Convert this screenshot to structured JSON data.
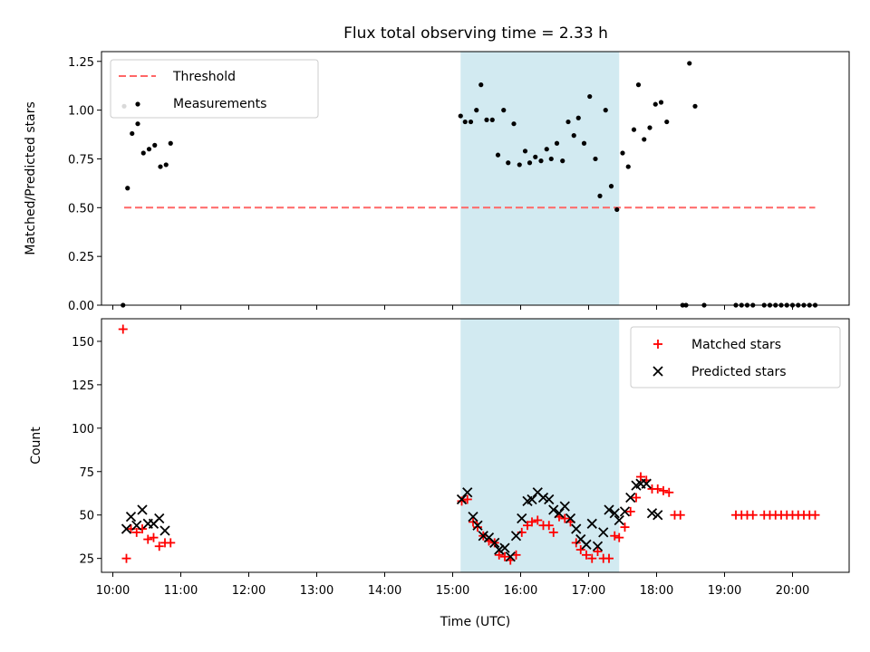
{
  "colors": {
    "shade": "#add8e6",
    "threshold": "#ff6666",
    "measurement": "#000000",
    "matched": "#ff0000",
    "predicted": "#000000"
  },
  "chart_data": [
    {
      "type": "scatter",
      "title": "Flux total observing time = 2.33 h",
      "xlabel": "",
      "ylabel": "Matched/Predicted stars",
      "ylim": [
        0.0,
        1.3
      ],
      "yticks": [
        "0.00",
        "0.25",
        "0.50",
        "0.75",
        "1.00",
        "1.25"
      ],
      "xlim": [
        "09:50",
        "20:50"
      ],
      "shaded_interval": [
        "15:07",
        "17:27"
      ],
      "legend": {
        "position": "upper left",
        "entries": [
          "Threshold",
          "Measurements"
        ]
      },
      "threshold": {
        "name": "Threshold",
        "y": 0.5,
        "x_start": "10:10",
        "x_end": "20:20",
        "style": "dashed"
      },
      "series": [
        {
          "name": "Measurements",
          "points": [
            [
              "10:09",
              0.0
            ],
            [
              "10:10",
              1.02
            ],
            [
              "10:13",
              0.6
            ],
            [
              "10:17",
              0.88
            ],
            [
              "10:22",
              0.93
            ],
            [
              "10:27",
              0.78
            ],
            [
              "10:32",
              0.8
            ],
            [
              "10:37",
              0.82
            ],
            [
              "10:42",
              0.71
            ],
            [
              "10:47",
              0.72
            ],
            [
              "10:51",
              0.83
            ],
            [
              "15:07",
              0.97
            ],
            [
              "15:11",
              0.94
            ],
            [
              "15:16",
              0.94
            ],
            [
              "15:21",
              1.0
            ],
            [
              "15:25",
              1.13
            ],
            [
              "15:30",
              0.95
            ],
            [
              "15:35",
              0.95
            ],
            [
              "15:40",
              0.77
            ],
            [
              "15:45",
              1.0
            ],
            [
              "15:49",
              0.73
            ],
            [
              "15:54",
              0.93
            ],
            [
              "15:59",
              0.72
            ],
            [
              "16:04",
              0.79
            ],
            [
              "16:08",
              0.73
            ],
            [
              "16:13",
              0.76
            ],
            [
              "16:18",
              0.74
            ],
            [
              "16:23",
              0.8
            ],
            [
              "16:27",
              0.75
            ],
            [
              "16:32",
              0.83
            ],
            [
              "16:37",
              0.74
            ],
            [
              "16:42",
              0.94
            ],
            [
              "16:47",
              0.87
            ],
            [
              "16:51",
              0.96
            ],
            [
              "16:56",
              0.83
            ],
            [
              "17:01",
              1.07
            ],
            [
              "17:06",
              0.75
            ],
            [
              "17:10",
              0.56
            ],
            [
              "17:15",
              1.0
            ],
            [
              "17:20",
              0.61
            ],
            [
              "17:25",
              0.49
            ],
            [
              "17:30",
              0.78
            ],
            [
              "17:35",
              0.71
            ],
            [
              "17:40",
              0.9
            ],
            [
              "17:44",
              1.13
            ],
            [
              "17:49",
              0.85
            ],
            [
              "17:54",
              0.91
            ],
            [
              "17:59",
              1.03
            ],
            [
              "18:04",
              1.04
            ],
            [
              "18:09",
              0.94
            ],
            [
              "18:23",
              0.0
            ],
            [
              "18:26",
              0.0
            ],
            [
              "18:29",
              1.24
            ],
            [
              "18:34",
              1.02
            ],
            [
              "18:42",
              0.0
            ],
            [
              "19:10",
              0.0
            ],
            [
              "19:15",
              0.0
            ],
            [
              "19:20",
              0.0
            ],
            [
              "19:25",
              0.0
            ],
            [
              "19:35",
              0.0
            ],
            [
              "19:40",
              0.0
            ],
            [
              "19:45",
              0.0
            ],
            [
              "19:50",
              0.0
            ],
            [
              "19:55",
              0.0
            ],
            [
              "20:00",
              0.0
            ],
            [
              "20:05",
              0.0
            ],
            [
              "20:10",
              0.0
            ],
            [
              "20:15",
              0.0
            ],
            [
              "20:20",
              0.0
            ]
          ]
        }
      ]
    },
    {
      "type": "scatter",
      "title": "",
      "xlabel": "Time (UTC)",
      "ylabel": "Count",
      "ylim": [
        17,
        163
      ],
      "yticks": [
        "25",
        "50",
        "75",
        "100",
        "125",
        "150"
      ],
      "xticks": [
        "10:00",
        "11:00",
        "12:00",
        "13:00",
        "14:00",
        "15:00",
        "16:00",
        "17:00",
        "18:00",
        "19:00",
        "20:00"
      ],
      "xlim": [
        "09:50",
        "20:50"
      ],
      "shaded_interval": [
        "15:07",
        "17:27"
      ],
      "legend": {
        "position": "upper right",
        "entries": [
          "Matched stars",
          "Predicted stars"
        ]
      },
      "series": [
        {
          "name": "Matched stars",
          "marker": "+",
          "points": [
            [
              "10:09",
              157
            ],
            [
              "10:12",
              25
            ],
            [
              "10:16",
              42
            ],
            [
              "10:21",
              40
            ],
            [
              "10:26",
              42
            ],
            [
              "10:31",
              36
            ],
            [
              "10:36",
              37
            ],
            [
              "10:41",
              32
            ],
            [
              "10:46",
              34
            ],
            [
              "10:51",
              34
            ],
            [
              "15:08",
              58
            ],
            [
              "15:13",
              59
            ],
            [
              "15:18",
              46
            ],
            [
              "15:22",
              43
            ],
            [
              "15:27",
              38
            ],
            [
              "15:32",
              35
            ],
            [
              "15:37",
              34
            ],
            [
              "15:41",
              27
            ],
            [
              "15:46",
              26
            ],
            [
              "15:51",
              24
            ],
            [
              "15:56",
              27
            ],
            [
              "16:01",
              40
            ],
            [
              "16:06",
              44
            ],
            [
              "16:10",
              46
            ],
            [
              "16:15",
              47
            ],
            [
              "16:20",
              44
            ],
            [
              "16:25",
              44
            ],
            [
              "16:29",
              40
            ],
            [
              "16:34",
              49
            ],
            [
              "16:39",
              48
            ],
            [
              "16:44",
              46
            ],
            [
              "16:49",
              34
            ],
            [
              "16:53",
              30
            ],
            [
              "16:58",
              27
            ],
            [
              "17:03",
              25
            ],
            [
              "17:08",
              29
            ],
            [
              "17:13",
              25
            ],
            [
              "17:18",
              25
            ],
            [
              "17:23",
              38
            ],
            [
              "17:27",
              37
            ],
            [
              "17:32",
              43
            ],
            [
              "17:37",
              52
            ],
            [
              "17:42",
              60
            ],
            [
              "17:46",
              72
            ],
            [
              "17:51",
              70
            ],
            [
              "17:56",
              65
            ],
            [
              "18:01",
              65
            ],
            [
              "18:06",
              64
            ],
            [
              "18:11",
              63
            ],
            [
              "18:16",
              50
            ],
            [
              "18:21",
              50
            ],
            [
              "19:10",
              50
            ],
            [
              "19:15",
              50
            ],
            [
              "19:20",
              50
            ],
            [
              "19:25",
              50
            ],
            [
              "19:35",
              50
            ],
            [
              "19:40",
              50
            ],
            [
              "19:45",
              50
            ],
            [
              "19:50",
              50
            ],
            [
              "19:55",
              50
            ],
            [
              "20:00",
              50
            ],
            [
              "20:05",
              50
            ],
            [
              "20:10",
              50
            ],
            [
              "20:15",
              50
            ],
            [
              "20:20",
              50
            ]
          ]
        },
        {
          "name": "Predicted stars",
          "marker": "x",
          "points": [
            [
              "10:12",
              42
            ],
            [
              "10:16",
              49
            ],
            [
              "10:21",
              44
            ],
            [
              "10:26",
              53
            ],
            [
              "10:31",
              45
            ],
            [
              "10:36",
              45
            ],
            [
              "10:41",
              48
            ],
            [
              "10:46",
              41
            ],
            [
              "15:08",
              59
            ],
            [
              "15:13",
              63
            ],
            [
              "15:18",
              49
            ],
            [
              "15:22",
              44
            ],
            [
              "15:27",
              38
            ],
            [
              "15:32",
              37
            ],
            [
              "15:37",
              34
            ],
            [
              "15:41",
              30
            ],
            [
              "15:46",
              31
            ],
            [
              "15:51",
              26
            ],
            [
              "15:56",
              38
            ],
            [
              "16:01",
              48
            ],
            [
              "16:06",
              58
            ],
            [
              "16:10",
              59
            ],
            [
              "16:15",
              63
            ],
            [
              "16:20",
              60
            ],
            [
              "16:25",
              59
            ],
            [
              "16:29",
              53
            ],
            [
              "16:34",
              51
            ],
            [
              "16:39",
              55
            ],
            [
              "16:44",
              48
            ],
            [
              "16:49",
              42
            ],
            [
              "16:53",
              36
            ],
            [
              "16:58",
              33
            ],
            [
              "17:03",
              45
            ],
            [
              "17:08",
              32
            ],
            [
              "17:13",
              40
            ],
            [
              "17:18",
              53
            ],
            [
              "17:23",
              51
            ],
            [
              "17:27",
              47
            ],
            [
              "17:32",
              52
            ],
            [
              "17:37",
              60
            ],
            [
              "17:42",
              67
            ],
            [
              "17:46",
              68
            ],
            [
              "17:51",
              68
            ],
            [
              "17:56",
              51
            ],
            [
              "18:01",
              50
            ]
          ]
        }
      ]
    }
  ]
}
